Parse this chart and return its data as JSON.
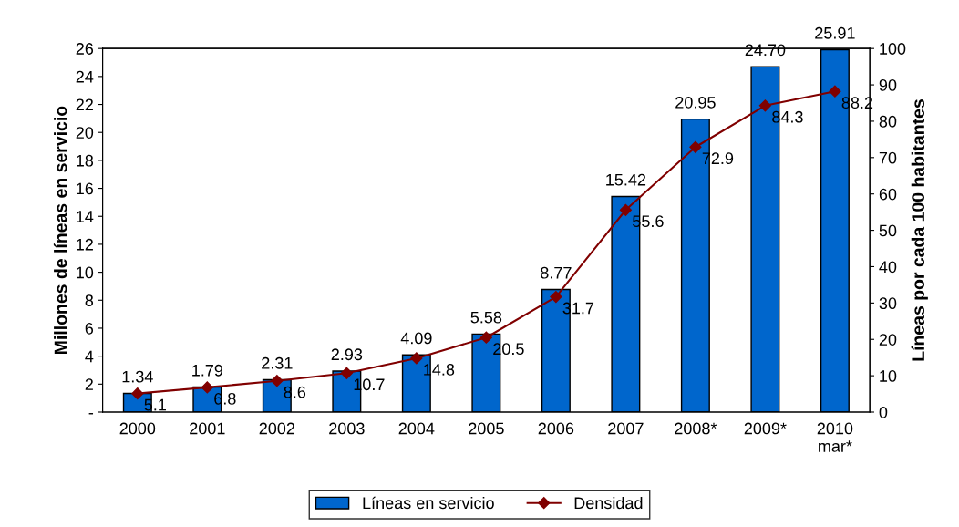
{
  "chart_data": {
    "type": "bar",
    "categories": [
      "2000",
      "2001",
      "2002",
      "2003",
      "2004",
      "2005",
      "2006",
      "2007",
      "2008*",
      "2009*",
      "2010\nmar*"
    ],
    "ylabel": "Millones de líneas en servicio",
    "y2label": "Líneas por cada 100 habitantes",
    "ylim": [
      0,
      26
    ],
    "yticks": [
      {
        "value": 0,
        "label": "-"
      },
      2,
      4,
      6,
      8,
      10,
      12,
      14,
      16,
      18,
      20,
      22,
      24,
      26
    ],
    "y2lim": [
      0,
      100
    ],
    "y2ticks": [
      0,
      10,
      20,
      30,
      40,
      50,
      60,
      70,
      80,
      90,
      100
    ],
    "series": [
      {
        "name": "Líneas en servicio",
        "color": "#0066cc",
        "values": [
          1.34,
          1.79,
          2.31,
          2.93,
          4.09,
          5.58,
          8.77,
          15.42,
          20.95,
          24.7,
          25.91
        ],
        "value_labels": [
          "1.34",
          "1.79",
          "2.31",
          "2.93",
          "4.09",
          "5.58",
          "8.77",
          "15.42",
          "20.95",
          "24.70",
          "25.91"
        ]
      },
      {
        "name": "Densidad",
        "type": "line",
        "axis": "y2",
        "color": "#800000",
        "marker": "diamond",
        "values": [
          5.1,
          6.8,
          8.6,
          10.7,
          14.8,
          20.5,
          31.7,
          55.6,
          72.9,
          84.3,
          88.2
        ]
      }
    ],
    "data_labels": true,
    "legend": "bottom",
    "grid": false
  }
}
